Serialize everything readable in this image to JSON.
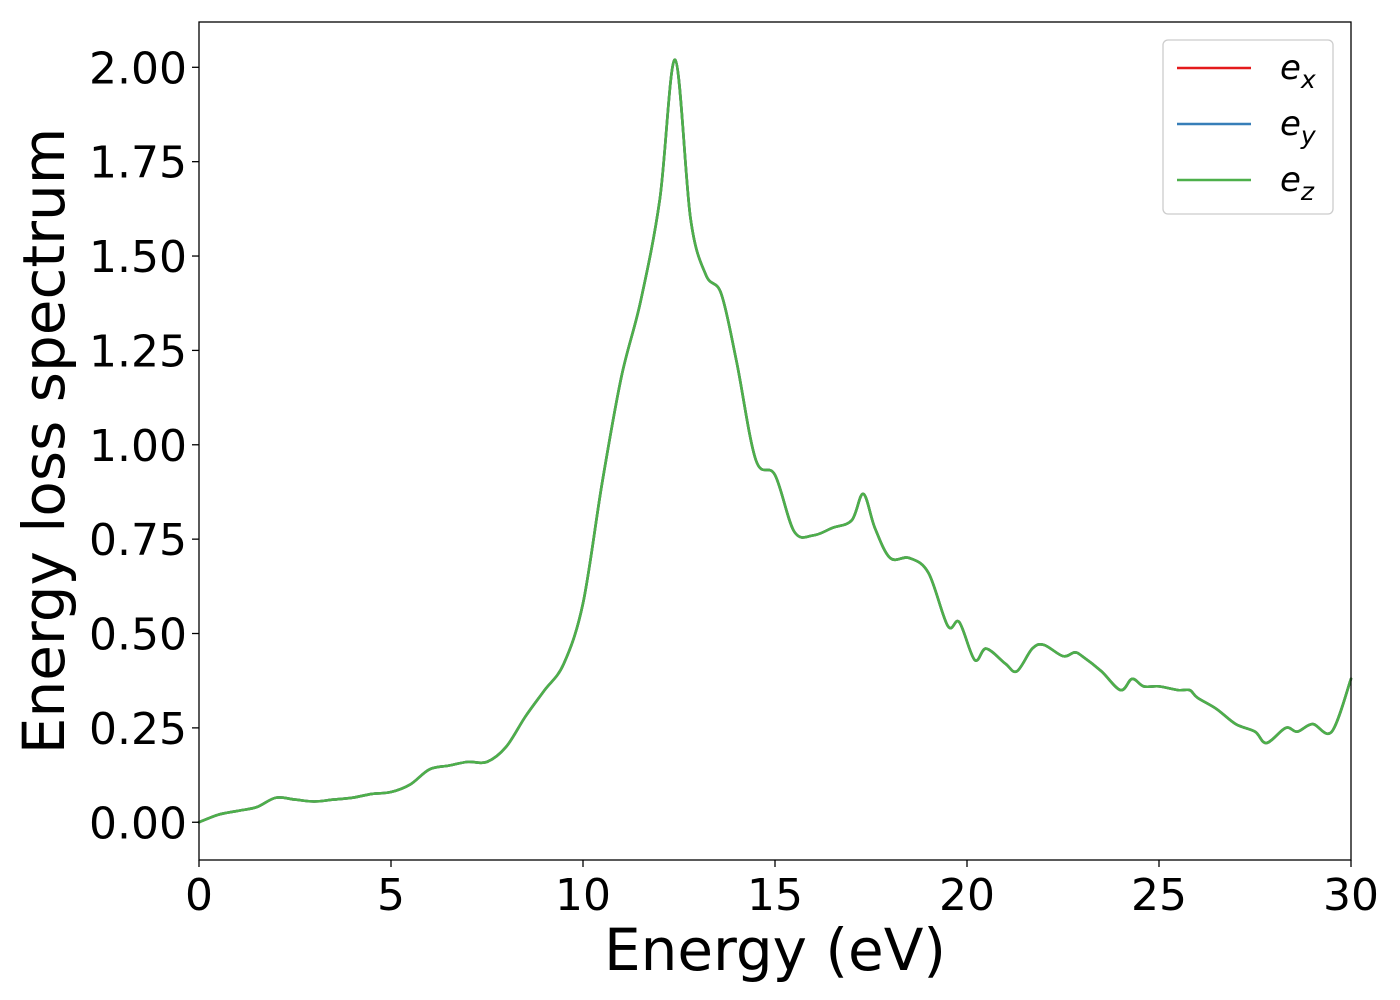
{
  "chart_data": {
    "type": "line",
    "xlabel": "Energy (eV)",
    "ylabel": "Energy loss spectrum",
    "xlim": [
      0,
      30
    ],
    "ylim": [
      -0.1,
      2.12
    ],
    "xticks": [
      0,
      5,
      10,
      15,
      20,
      25,
      30
    ],
    "xtick_labels": [
      "0",
      "5",
      "10",
      "15",
      "20",
      "25",
      "30"
    ],
    "yticks": [
      0,
      0.25,
      0.5,
      0.75,
      1.0,
      1.25,
      1.5,
      1.75,
      2.0
    ],
    "ytick_labels": [
      "0.00",
      "0.25",
      "0.50",
      "0.75",
      "1.00",
      "1.25",
      "1.50",
      "1.75",
      "2.00"
    ],
    "grid": false,
    "legend_position": "top-right",
    "x": [
      0,
      0.5,
      1,
      1.5,
      2,
      2.5,
      3,
      3.5,
      4,
      4.5,
      5,
      5.5,
      6,
      6.5,
      7,
      7.5,
      8,
      8.5,
      9,
      9.5,
      10,
      10.5,
      11,
      11.5,
      12,
      12.4,
      12.8,
      13.2,
      13.6,
      14,
      14.5,
      15,
      15.5,
      16,
      16.5,
      17,
      17.3,
      17.6,
      18,
      18.5,
      19,
      19.5,
      19.8,
      20.2,
      20.5,
      21,
      21.3,
      21.7,
      22,
      22.5,
      22.8,
      23,
      23.5,
      24,
      24.3,
      24.6,
      25,
      25.5,
      25.8,
      26,
      26.5,
      27,
      27.5,
      27.8,
      28.3,
      28.6,
      29,
      29.5,
      30
    ],
    "series": [
      {
        "name": "e",
        "subscript": "x",
        "color": "#e41a1c",
        "values": [
          0.0,
          0.02,
          0.03,
          0.04,
          0.065,
          0.06,
          0.055,
          0.06,
          0.065,
          0.075,
          0.08,
          0.1,
          0.14,
          0.15,
          0.16,
          0.16,
          0.2,
          0.28,
          0.35,
          0.42,
          0.58,
          0.9,
          1.18,
          1.38,
          1.65,
          2.02,
          1.6,
          1.45,
          1.4,
          1.22,
          0.96,
          0.92,
          0.77,
          0.76,
          0.78,
          0.8,
          0.87,
          0.78,
          0.7,
          0.7,
          0.66,
          0.52,
          0.53,
          0.43,
          0.46,
          0.42,
          0.4,
          0.46,
          0.47,
          0.44,
          0.45,
          0.44,
          0.4,
          0.35,
          0.38,
          0.36,
          0.36,
          0.35,
          0.35,
          0.33,
          0.3,
          0.26,
          0.24,
          0.21,
          0.25,
          0.24,
          0.26,
          0.24,
          0.38
        ]
      },
      {
        "name": "e",
        "subscript": "y",
        "color": "#377eb8",
        "values": [
          0.0,
          0.02,
          0.03,
          0.04,
          0.065,
          0.06,
          0.055,
          0.06,
          0.065,
          0.075,
          0.08,
          0.1,
          0.14,
          0.15,
          0.16,
          0.16,
          0.2,
          0.28,
          0.35,
          0.42,
          0.58,
          0.9,
          1.18,
          1.38,
          1.65,
          2.02,
          1.6,
          1.45,
          1.4,
          1.22,
          0.96,
          0.92,
          0.77,
          0.76,
          0.78,
          0.8,
          0.87,
          0.78,
          0.7,
          0.7,
          0.66,
          0.52,
          0.53,
          0.43,
          0.46,
          0.42,
          0.4,
          0.46,
          0.47,
          0.44,
          0.45,
          0.44,
          0.4,
          0.35,
          0.38,
          0.36,
          0.36,
          0.35,
          0.35,
          0.33,
          0.3,
          0.26,
          0.24,
          0.21,
          0.25,
          0.24,
          0.26,
          0.24,
          0.38
        ]
      },
      {
        "name": "e",
        "subscript": "z",
        "color": "#4daf4a",
        "values": [
          0.0,
          0.02,
          0.03,
          0.04,
          0.065,
          0.06,
          0.055,
          0.06,
          0.065,
          0.075,
          0.08,
          0.1,
          0.14,
          0.15,
          0.16,
          0.16,
          0.2,
          0.28,
          0.35,
          0.42,
          0.58,
          0.9,
          1.18,
          1.38,
          1.65,
          2.02,
          1.6,
          1.45,
          1.4,
          1.22,
          0.96,
          0.92,
          0.77,
          0.76,
          0.78,
          0.8,
          0.87,
          0.78,
          0.7,
          0.7,
          0.66,
          0.52,
          0.53,
          0.43,
          0.46,
          0.42,
          0.4,
          0.46,
          0.47,
          0.44,
          0.45,
          0.44,
          0.4,
          0.35,
          0.38,
          0.36,
          0.36,
          0.35,
          0.35,
          0.33,
          0.3,
          0.26,
          0.24,
          0.21,
          0.25,
          0.24,
          0.26,
          0.24,
          0.38
        ]
      }
    ]
  }
}
